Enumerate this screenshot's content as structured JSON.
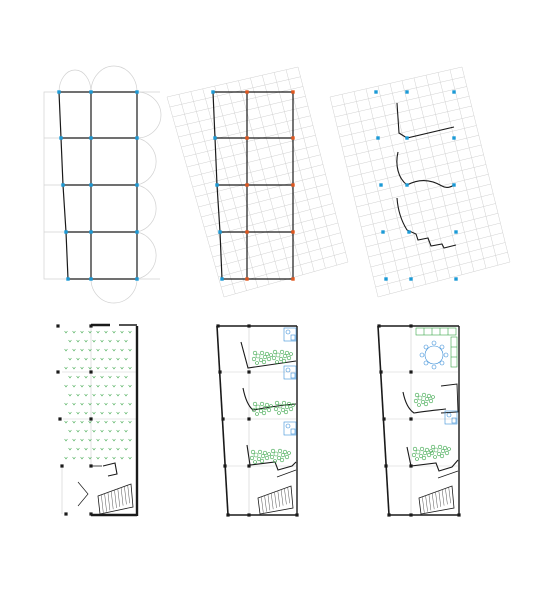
{
  "figure": {
    "panels": [
      {
        "id": "grid-arcs"
      },
      {
        "id": "grid-rotated-overlay"
      },
      {
        "id": "wall-sketches"
      },
      {
        "id": "plan-open-planting"
      },
      {
        "id": "plan-three-rooms"
      },
      {
        "id": "plan-two-rooms"
      }
    ],
    "colors": {
      "structure": "#1a1a1a",
      "light_grid": "#c8c8c8",
      "cyan_column": "#1b9ad6",
      "orange_node": "#e2571e",
      "green_planting": "#3aa64a",
      "blue_fixture": "#3b8fd8"
    }
  }
}
